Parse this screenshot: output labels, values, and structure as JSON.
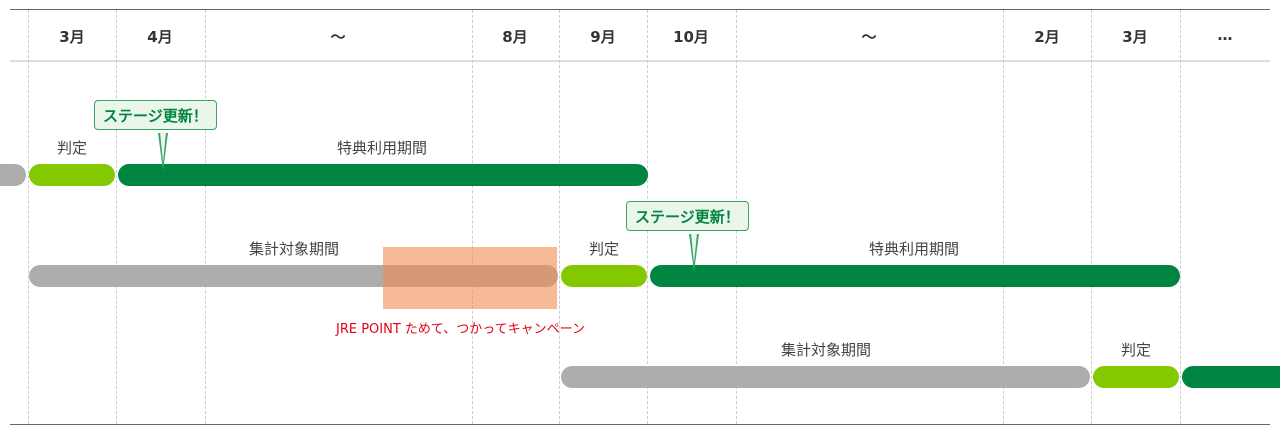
{
  "header": {
    "columns": [
      "3月",
      "4月",
      "〜",
      "8月",
      "9月",
      "10月",
      "〜",
      "2月",
      "3月",
      "…"
    ]
  },
  "rows": [
    {
      "judge_label": "判定",
      "benefit_label": "特典利用期間",
      "bubble": "ステージ更新！"
    },
    {
      "aggregate_label": "集計対象期間",
      "judge_label": "判定",
      "benefit_label": "特典利用期間",
      "bubble": "ステージ更新！"
    },
    {
      "aggregate_label": "集計対象期間",
      "judge_label": "判定"
    }
  ],
  "campaign": {
    "label": "JRE POINT ためて、つかってキャンペーン",
    "color": "#f08c50"
  },
  "colors": {
    "aggregate": "#adadad",
    "judge": "#84c800",
    "benefit": "#008540",
    "campaign_text": "#e60012"
  }
}
